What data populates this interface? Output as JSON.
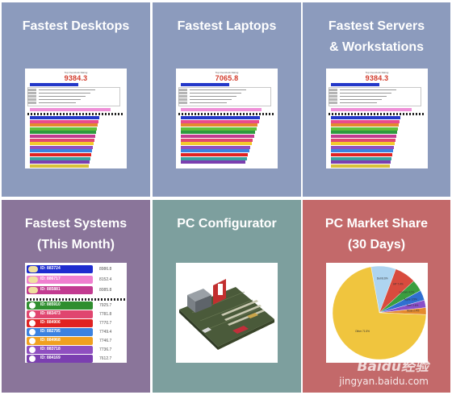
{
  "tiles": [
    {
      "title_lines": [
        "Fastest Desktops"
      ],
      "score": "9384.3",
      "header": "Top Overclock Rating"
    },
    {
      "title_lines": [
        "Fastest Laptops"
      ],
      "score": "7065.8",
      "header": "Top Overclock Rating"
    },
    {
      "title_lines": [
        "Fastest Servers",
        "& Workstations"
      ],
      "score": "9384.3",
      "header": "Top Overclock Rating"
    },
    {
      "title_lines": [
        "Fastest Systems",
        "(This Month)"
      ]
    },
    {
      "title_lines": [
        "PC Configurator"
      ]
    },
    {
      "title_lines": [
        "PC Market Share",
        "(30 Days)"
      ]
    }
  ],
  "colors": {
    "tile_blue": "#8c9bbd",
    "tile_purple": "#8a759a",
    "tile_teal": "#7d9f9e",
    "tile_red": "#c3696a",
    "score_red": "#d23a2a"
  },
  "month_list": [
    {
      "rank": "1",
      "id": "ID: 883724",
      "value": "8986.8",
      "color": "#1e2ccf"
    },
    {
      "rank": "2",
      "id": "ID: 886717",
      "value": "8152.4",
      "color": "#ef7fcf"
    },
    {
      "rank": "3",
      "id": "ID: 885881",
      "value": "8085.8",
      "color": "#c23a90"
    },
    {
      "rank": "4",
      "id": "ID: 885910",
      "value": "7925.7",
      "color": "#2f8e2f"
    },
    {
      "rank": "5",
      "id": "ID: 883473",
      "value": "7781.8",
      "color": "#e0456f"
    },
    {
      "rank": "6",
      "id": "ID: 884906",
      "value": "7770.7",
      "color": "#e02222"
    },
    {
      "rank": "7",
      "id": "ID: 882795",
      "value": "7749.4",
      "color": "#3b82e0"
    },
    {
      "rank": "8",
      "id": "ID: 884968",
      "value": "7746.7",
      "color": "#f0a020"
    },
    {
      "rank": "9",
      "id": "ID: 883718",
      "value": "7736.7",
      "color": "#8f4fc0"
    },
    {
      "rank": "10",
      "id": "ID: 884169",
      "value": "7612.7",
      "color": "#7b3fb0"
    }
  ],
  "market_share": {
    "chart_data": {
      "type": "pie",
      "slices": [
        {
          "label": "Other 71.5%",
          "value": 71.5,
          "color": "#f0c53e"
        },
        {
          "label": "Dell 8.6%",
          "value": 8.6,
          "color": "#aed4f0"
        },
        {
          "label": "HP 7.4%",
          "value": 7.4,
          "color": "#d84b3e"
        },
        {
          "label": "Lenovo 4.0%",
          "value": 4.0,
          "color": "#3a9e3f"
        },
        {
          "label": "Apple 3.5%",
          "value": 3.5,
          "color": "#2f6fd1"
        },
        {
          "label": "Acer 2.6%",
          "value": 2.6,
          "color": "#8a4fc9"
        },
        {
          "label": "Asus 2.4%",
          "value": 2.4,
          "color": "#e58a2e"
        }
      ]
    }
  },
  "watermark": {
    "brand": "Baidu经验",
    "url": "jingyan.baidu.com"
  }
}
